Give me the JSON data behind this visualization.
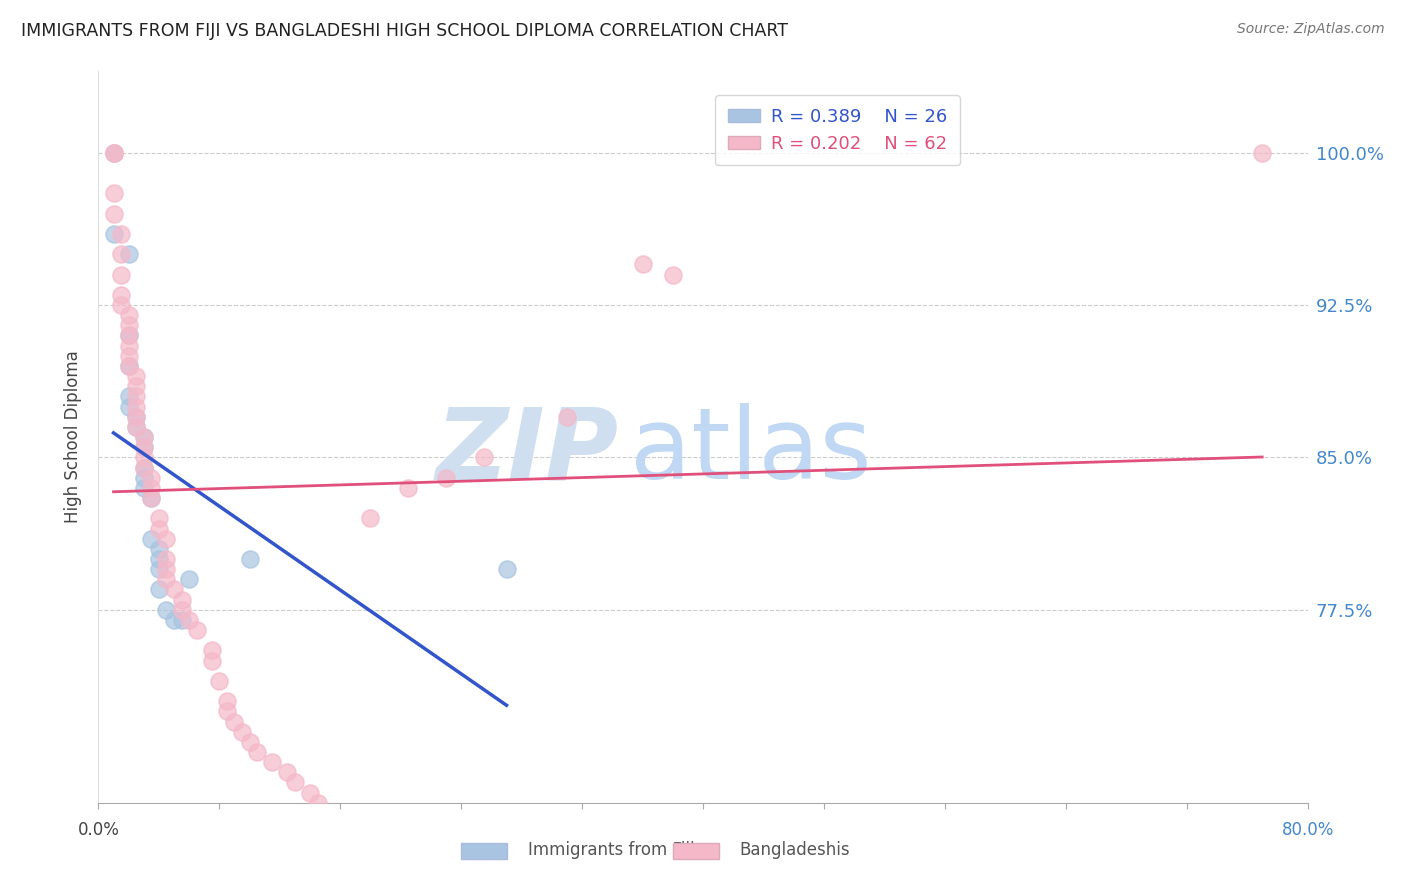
{
  "title": "IMMIGRANTS FROM FIJI VS BANGLADESHI HIGH SCHOOL DIPLOMA CORRELATION CHART",
  "source": "Source: ZipAtlas.com",
  "ylabel": "High School Diploma",
  "fiji_color": "#a8c4e0",
  "bang_color": "#f4b8c8",
  "fiji_line_color": "#3355cc",
  "bang_line_color": "#e0507a",
  "watermark_zip": "ZIP",
  "watermark_atlas": "atlas",
  "watermark_color_zip": "#c8d8f0",
  "watermark_color_atlas": "#c8d8f0",
  "legend_fiji_r": "R = 0.389",
  "legend_fiji_n": "N = 26",
  "legend_bang_r": "R = 0.202",
  "legend_bang_n": "N = 62",
  "ytick_values": [
    0.775,
    0.85,
    0.925,
    1.0
  ],
  "ytick_labels": [
    "77.5%",
    "85.0%",
    "92.5%",
    "100.0%"
  ],
  "xlim": [
    0.0,
    0.8
  ],
  "ylim": [
    0.68,
    1.04
  ],
  "fiji_x": [
    0.01,
    0.01,
    0.02,
    0.02,
    0.02,
    0.02,
    0.02,
    0.025,
    0.025,
    0.03,
    0.03,
    0.03,
    0.03,
    0.03,
    0.035,
    0.035,
    0.04,
    0.04,
    0.04,
    0.04,
    0.045,
    0.05,
    0.055,
    0.06,
    0.1,
    0.27
  ],
  "fiji_y": [
    1.0,
    0.96,
    0.95,
    0.91,
    0.895,
    0.88,
    0.875,
    0.87,
    0.865,
    0.86,
    0.855,
    0.845,
    0.84,
    0.835,
    0.83,
    0.81,
    0.805,
    0.8,
    0.795,
    0.785,
    0.775,
    0.77,
    0.77,
    0.79,
    0.8,
    0.795
  ],
  "bang_x": [
    0.01,
    0.01,
    0.01,
    0.01,
    0.015,
    0.015,
    0.015,
    0.015,
    0.015,
    0.02,
    0.02,
    0.02,
    0.02,
    0.02,
    0.02,
    0.025,
    0.025,
    0.025,
    0.025,
    0.025,
    0.025,
    0.03,
    0.03,
    0.03,
    0.03,
    0.035,
    0.035,
    0.035,
    0.04,
    0.04,
    0.045,
    0.045,
    0.045,
    0.045,
    0.05,
    0.055,
    0.055,
    0.06,
    0.065,
    0.075,
    0.075,
    0.08,
    0.085,
    0.085,
    0.09,
    0.095,
    0.1,
    0.105,
    0.115,
    0.125,
    0.13,
    0.14,
    0.145,
    0.155,
    0.18,
    0.205,
    0.23,
    0.255,
    0.31,
    0.36,
    0.38,
    0.77
  ],
  "bang_y": [
    1.0,
    1.0,
    0.98,
    0.97,
    0.96,
    0.95,
    0.94,
    0.93,
    0.925,
    0.92,
    0.915,
    0.91,
    0.905,
    0.9,
    0.895,
    0.89,
    0.885,
    0.88,
    0.875,
    0.87,
    0.865,
    0.86,
    0.855,
    0.85,
    0.845,
    0.84,
    0.835,
    0.83,
    0.82,
    0.815,
    0.81,
    0.8,
    0.795,
    0.79,
    0.785,
    0.78,
    0.775,
    0.77,
    0.765,
    0.755,
    0.75,
    0.74,
    0.73,
    0.725,
    0.72,
    0.715,
    0.71,
    0.705,
    0.7,
    0.695,
    0.69,
    0.685,
    0.68,
    0.675,
    0.82,
    0.835,
    0.84,
    0.85,
    0.87,
    0.945,
    0.94,
    1.0
  ]
}
